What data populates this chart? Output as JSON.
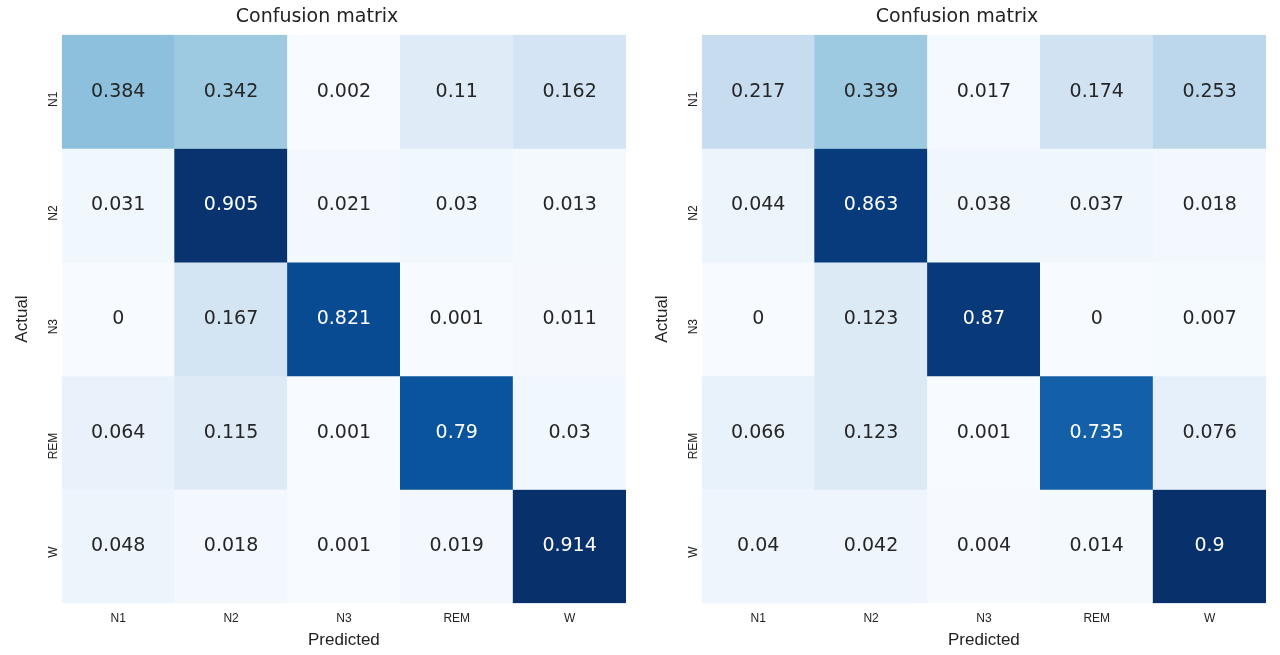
{
  "chart_data": [
    {
      "type": "heatmap",
      "title": "Confusion matrix",
      "xlabel": "Predicted",
      "ylabel": "Actual",
      "categories": [
        "N1",
        "N2",
        "N3",
        "REM",
        "W"
      ],
      "y_categories": [
        "N1",
        "N2",
        "N3",
        "REM",
        "W"
      ],
      "cells": [
        [
          0.384,
          0.342,
          0.002,
          0.11,
          0.162
        ],
        [
          0.031,
          0.905,
          0.021,
          0.03,
          0.013
        ],
        [
          0,
          0.167,
          0.821,
          0.001,
          0.011
        ],
        [
          0.064,
          0.115,
          0.001,
          0.79,
          0.03
        ],
        [
          0.048,
          0.018,
          0.001,
          0.019,
          0.914
        ]
      ],
      "data_labels": true,
      "grid": false,
      "legend": false
    },
    {
      "type": "heatmap",
      "title": "Confusion matrix",
      "xlabel": "Predicted",
      "ylabel": "Actual",
      "categories": [
        "N1",
        "N2",
        "N3",
        "REM",
        "W"
      ],
      "y_categories": [
        "N1",
        "N2",
        "N3",
        "REM",
        "W"
      ],
      "cells": [
        [
          0.217,
          0.339,
          0.017,
          0.174,
          0.253
        ],
        [
          0.044,
          0.863,
          0.038,
          0.037,
          0.018
        ],
        [
          0,
          0.123,
          0.87,
          0,
          0.007
        ],
        [
          0.066,
          0.123,
          0.001,
          0.735,
          0.076
        ],
        [
          0.04,
          0.042,
          0.004,
          0.014,
          0.9
        ]
      ],
      "data_labels": true,
      "grid": false,
      "legend": false
    }
  ]
}
